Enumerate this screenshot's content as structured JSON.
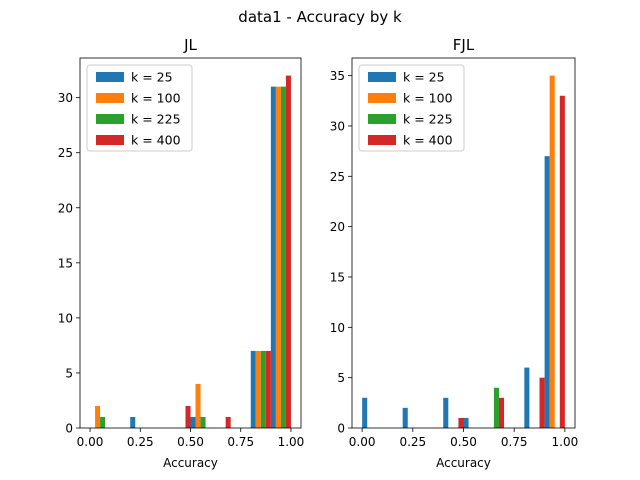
{
  "figure_title": "data1 - Accuracy by k",
  "chart_data": [
    {
      "type": "bar",
      "title": "JL",
      "xlabel": "Accuracy",
      "ylabel": "",
      "xlim": [
        -0.05,
        1.05
      ],
      "ylim": [
        0,
        33.6
      ],
      "xticks": [
        "0.00",
        "0.25",
        "0.50",
        "0.75",
        "1.00"
      ],
      "yticks": [
        "0",
        "5",
        "10",
        "15",
        "20",
        "25",
        "30"
      ],
      "legend_position": "upper-left",
      "grid": false,
      "bin_width": 0.1,
      "series": [
        {
          "name": "k = 25",
          "color": "#1f77b4",
          "bars": [
            {
              "x_start": 0.2,
              "value": 1
            },
            {
              "x_start": 0.5,
              "value": 1
            },
            {
              "x_start": 0.8,
              "value": 7
            },
            {
              "x_start": 0.9,
              "value": 31
            }
          ]
        },
        {
          "name": "k = 100",
          "color": "#ff7f0e",
          "bars": [
            {
              "x_start": 0.0,
              "value": 2
            },
            {
              "x_start": 0.5,
              "value": 4
            },
            {
              "x_start": 0.8,
              "value": 7
            },
            {
              "x_start": 0.9,
              "value": 31
            }
          ]
        },
        {
          "name": "k = 225",
          "color": "#2ca02c",
          "bars": [
            {
              "x_start": 0.0,
              "value": 1
            },
            {
              "x_start": 0.5,
              "value": 1
            },
            {
              "x_start": 0.8,
              "value": 7
            },
            {
              "x_start": 0.9,
              "value": 31
            }
          ]
        },
        {
          "name": "k = 400",
          "color": "#d62728",
          "bars": [
            {
              "x_start": 0.4,
              "value": 2
            },
            {
              "x_start": 0.6,
              "value": 1
            },
            {
              "x_start": 0.8,
              "value": 7
            },
            {
              "x_start": 0.9,
              "value": 32
            }
          ]
        }
      ]
    },
    {
      "type": "bar",
      "title": "FJL",
      "xlabel": "Accuracy",
      "ylabel": "",
      "xlim": [
        -0.05,
        1.05
      ],
      "ylim": [
        0,
        36.75
      ],
      "xticks": [
        "0.00",
        "0.25",
        "0.50",
        "0.75",
        "1.00"
      ],
      "yticks": [
        "0",
        "5",
        "10",
        "15",
        "20",
        "25",
        "30",
        "35"
      ],
      "legend_position": "upper-left",
      "grid": false,
      "bin_width": 0.1,
      "series": [
        {
          "name": "k = 25",
          "color": "#1f77b4",
          "bars": [
            {
              "x_start": 0.0,
              "value": 3
            },
            {
              "x_start": 0.2,
              "value": 2
            },
            {
              "x_start": 0.4,
              "value": 3
            },
            {
              "x_start": 0.5,
              "value": 1
            },
            {
              "x_start": 0.8,
              "value": 6
            },
            {
              "x_start": 0.9,
              "value": 27
            }
          ]
        },
        {
          "name": "k = 100",
          "color": "#ff7f0e",
          "bars": [
            {
              "x_start": 0.9,
              "value": 35
            }
          ]
        },
        {
          "name": "k = 225",
          "color": "#2ca02c",
          "bars": [
            {
              "x_start": 0.6,
              "value": 4
            }
          ]
        },
        {
          "name": "k = 400",
          "color": "#d62728",
          "bars": [
            {
              "x_start": 0.4,
              "value": 1
            },
            {
              "x_start": 0.6,
              "value": 3
            },
            {
              "x_start": 0.8,
              "value": 5
            },
            {
              "x_start": 0.9,
              "value": 33
            }
          ]
        }
      ]
    }
  ]
}
